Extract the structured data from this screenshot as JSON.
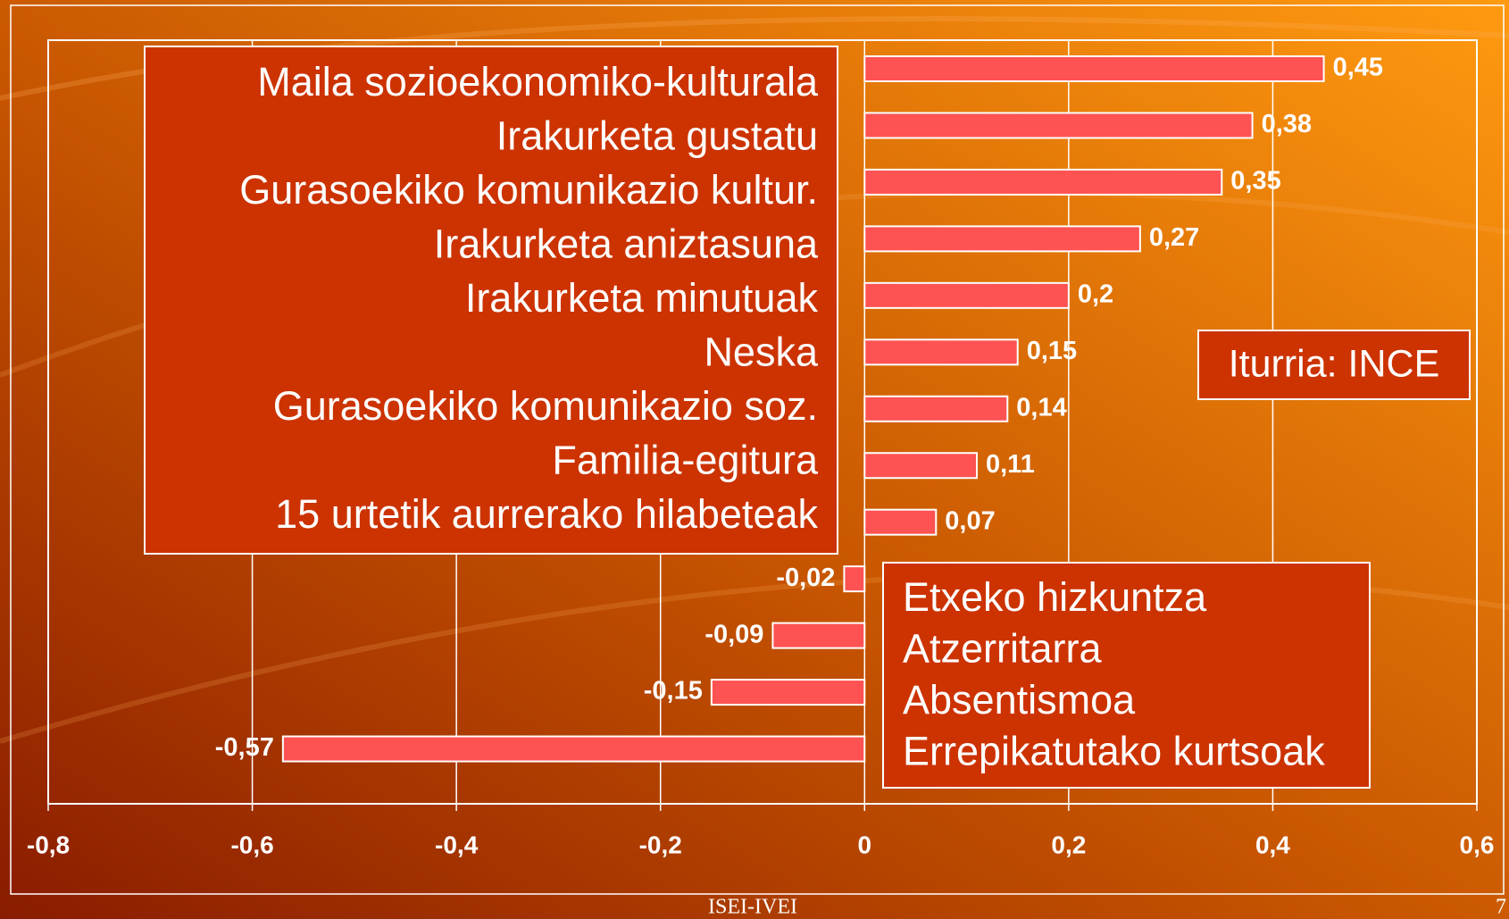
{
  "chart_data": {
    "type": "bar",
    "orientation": "horizontal",
    "categories": [
      "Maila sozioekonomiko-kulturala",
      "Irakurketa gustatu",
      "Gurasoekiko komunikazio kultur.",
      "Irakurketa aniztasuna",
      "Irakurketa minutuak",
      "Neska",
      "Gurasoekiko komunikazio soz.",
      "Familia-egitura",
      "15 urtetik aurrerako hilabeteak",
      "Etxeko hizkuntza",
      "Atzerritarra",
      "Absentismoa",
      "Errepikatutako kurtsoak"
    ],
    "values": [
      0.45,
      0.38,
      0.35,
      0.27,
      0.2,
      0.15,
      0.14,
      0.11,
      0.07,
      -0.02,
      -0.09,
      -0.15,
      -0.57
    ],
    "value_labels": [
      "0,45",
      "0,38",
      "0,35",
      "0,27",
      "0,2",
      "0,15",
      "0,14",
      "0,11",
      "0,07",
      "-0,02",
      "-0,09",
      "-0,15",
      "-0,57"
    ],
    "color": "#ff5252",
    "xlim": [
      -0.8,
      0.6
    ],
    "xticks": [
      {
        "value": -0.8,
        "label": "-0,8"
      },
      {
        "value": -0.6,
        "label": "-0,6"
      },
      {
        "value": -0.4,
        "label": "-0,4"
      },
      {
        "value": -0.2,
        "label": "-0,2"
      },
      0,
      {
        "value": 0.2,
        "label": "0,2"
      },
      {
        "value": 0.4,
        "label": "0,4"
      },
      {
        "value": 0.6,
        "label": "0,6"
      }
    ],
    "grid": true,
    "annotation": "Iturria: INCE",
    "footer": "ISEI-IVEI",
    "page_number": "7"
  }
}
